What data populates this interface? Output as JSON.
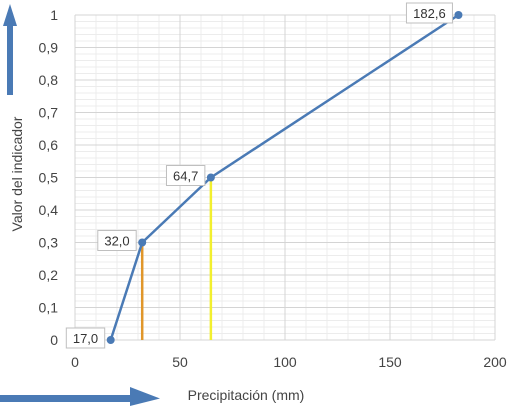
{
  "chart_data": {
    "type": "line",
    "xlabel": "Precipitación (mm)",
    "ylabel": "Valor del indicador",
    "xlim": [
      0,
      200
    ],
    "ylim": [
      0,
      1
    ],
    "x_ticks": [
      0,
      50,
      100,
      150,
      200
    ],
    "y_ticks": [
      0,
      0.1,
      0.2,
      0.3,
      0.4,
      0.5,
      0.6,
      0.7,
      0.8,
      0.9,
      1
    ],
    "x_tick_labels": [
      "0",
      "50",
      "100",
      "150",
      "200"
    ],
    "y_tick_labels": [
      "0",
      "0,1",
      "0,2",
      "0,3",
      "0,4",
      "0,5",
      "0,6",
      "0,7",
      "0,8",
      "0,9",
      "1"
    ],
    "grid": true,
    "series": [
      {
        "color": "#4a7ab5",
        "points": [
          {
            "x": 17.0,
            "y": 0.0,
            "label": "17,0"
          },
          {
            "x": 32.0,
            "y": 0.3,
            "label": "32,0"
          },
          {
            "x": 64.7,
            "y": 0.5,
            "label": "64,7"
          },
          {
            "x": 182.6,
            "y": 1.0,
            "label": "182,6"
          }
        ]
      }
    ],
    "reference_lines": [
      {
        "x": 32.0,
        "y_from": 0,
        "y_to": 0.3,
        "color": "#e0962a"
      },
      {
        "x": 64.7,
        "y_from": 0,
        "y_to": 0.5,
        "color": "#f2ef2e"
      }
    ],
    "annotations": [
      {
        "shape": "vertical-arrow-up",
        "color": "#4a7ab5"
      },
      {
        "shape": "horizontal-arrow-right",
        "color": "#4a7ab5"
      }
    ]
  }
}
